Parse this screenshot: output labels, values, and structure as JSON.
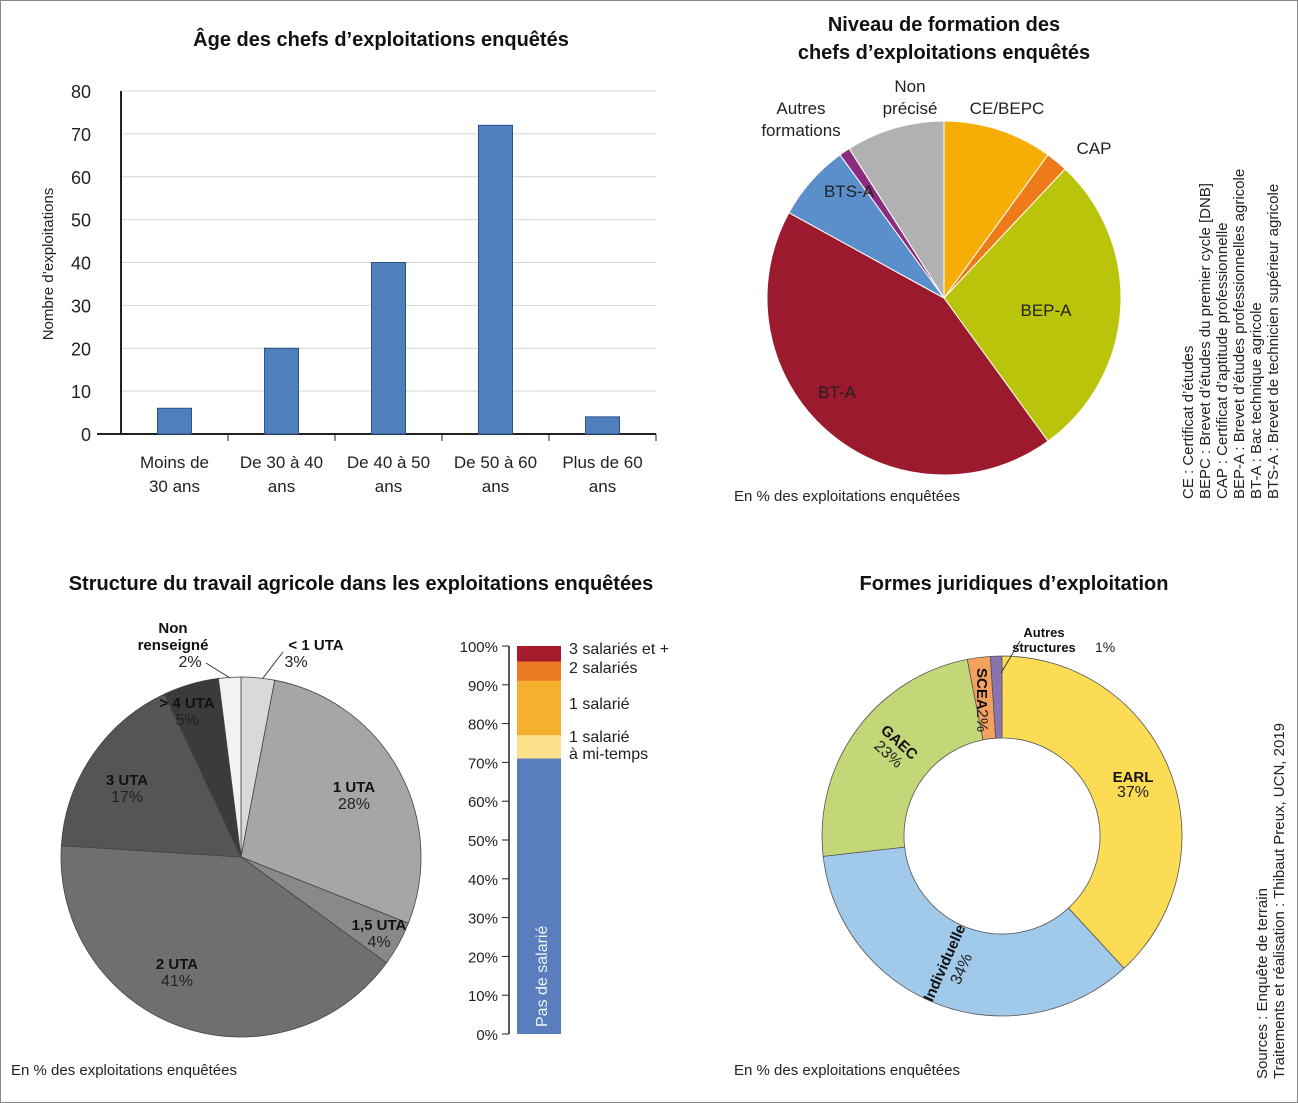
{
  "note_exploitations": "En % des exploitations enquêtées",
  "sources": [
    "Sources : Enquête de terrain",
    "Traitements et réalisation : Thibaut Preux, UCN, 2019"
  ],
  "chart_data": [
    {
      "type": "bar",
      "title": "Âge des chefs d’exploitations enquêtés",
      "ylabel": "Nombre d’exploitations",
      "ylim": [
        0,
        80
      ],
      "yticks": [
        "0",
        "10",
        "20",
        "30",
        "40",
        "50",
        "60",
        "70",
        "80"
      ],
      "categories": [
        [
          "Moins de",
          "30 ans"
        ],
        [
          "De 30 à 40",
          "ans"
        ],
        [
          "De 40 à 50",
          "ans"
        ],
        [
          "De 50 à 60",
          "ans"
        ],
        [
          "Plus de 60",
          "ans"
        ]
      ],
      "values": [
        6,
        20,
        40,
        72,
        4
      ],
      "color": "#4f7fbd"
    },
    {
      "type": "pie",
      "title": [
        "Niveau de formation des",
        "chefs d’exploitations enquêtés"
      ],
      "note": "En % des exploitations enquêtées",
      "slices": [
        {
          "label": [
            "CE/BEPC"
          ],
          "value": 10,
          "color": "#f6ae07"
        },
        {
          "label": [
            "CAP"
          ],
          "value": 2,
          "color": "#ee7a1a"
        },
        {
          "label": [
            "BEP-A"
          ],
          "value": 28,
          "color": "#b9c40b"
        },
        {
          "label": [
            "BT-A"
          ],
          "value": 43,
          "color": "#9b1a2e"
        },
        {
          "label": [
            "BTS-A"
          ],
          "value": 7,
          "color": "#5b8fcb"
        },
        {
          "label": [
            "Autres",
            "formations"
          ],
          "value": 1,
          "color": "#8b2c7f"
        },
        {
          "label": [
            "Non",
            "précisé"
          ],
          "value": 9,
          "color": "#b1b1b1"
        }
      ],
      "legend": [
        "CE : Certificat d’études",
        "BEPC : Brevet d’études du premier cycle [DNB]",
        "CAP : Certificat d’aptitude professionnelle",
        "BEP-A : Brevet d’études professionnelles agricole",
        "BT-A : Bac technique agricole",
        "BTS-A : Brevet de technicien supérieur agricole"
      ]
    },
    {
      "type": "pie",
      "title": "Structure du travail agricole dans les exploitations enquêtées",
      "note": "En % des exploitations enquêtées",
      "slices": [
        {
          "label": "< 1 UTA",
          "pct": "3%",
          "value": 3,
          "color": "#d9d9d9"
        },
        {
          "label": "1 UTA",
          "pct": "28%",
          "value": 28,
          "color": "#a6a6a6"
        },
        {
          "label": "1,5 UTA",
          "pct": "4%",
          "value": 4,
          "color": "#898989"
        },
        {
          "label": "2 UTA",
          "pct": "41%",
          "value": 41,
          "color": "#6f6f6f"
        },
        {
          "label": "3 UTA",
          "pct": "17%",
          "value": 17,
          "color": "#555555"
        },
        {
          "label": "> 4 UTA",
          "pct": "5%",
          "value": 5,
          "color": "#3b3b3b"
        },
        {
          "label": [
            "Non",
            "renseigné"
          ],
          "pct": "2%",
          "value": 2,
          "color": "#f2f2f2"
        }
      ]
    },
    {
      "type": "bar",
      "stacked": true,
      "ylim": [
        0,
        100
      ],
      "yticks": [
        "0%",
        "10%",
        "20%",
        "30%",
        "40%",
        "50%",
        "60%",
        "70%",
        "80%",
        "90%",
        "100%"
      ],
      "series": [
        {
          "name": "Pas de salarié",
          "value": 71,
          "color": "#5a7dbd"
        },
        {
          "name": [
            "1 salarié",
            "à mi-temps"
          ],
          "value": 6,
          "color": "#fde28b"
        },
        {
          "name": [
            "1 salarié"
          ],
          "value": 14,
          "color": "#f5b12d"
        },
        {
          "name": [
            "2 salariés"
          ],
          "value": 5,
          "color": "#ec7a23"
        },
        {
          "name": [
            "3 salariés et +"
          ],
          "value": 4,
          "color": "#a51d2d"
        }
      ]
    },
    {
      "type": "pie",
      "donut": true,
      "title": "Formes juridiques d’exploitation",
      "note": "En % des exploitations enquêtées",
      "slices": [
        {
          "label": "EARL",
          "pct": "37%",
          "value": 37,
          "color": "#fddc55"
        },
        {
          "label": "Individuelle",
          "pct": "34%",
          "value": 34,
          "color": "#a1c9e9"
        },
        {
          "label": "GAEC",
          "pct": "23%",
          "value": 23,
          "color": "#c4d778"
        },
        {
          "label": "SCEA",
          "pct": "2%",
          "value": 2,
          "color": "#f4a05f"
        },
        {
          "label": [
            "Autres",
            "structures"
          ],
          "pct": "1%",
          "value": 1,
          "color": "#8b74ad"
        }
      ]
    }
  ]
}
